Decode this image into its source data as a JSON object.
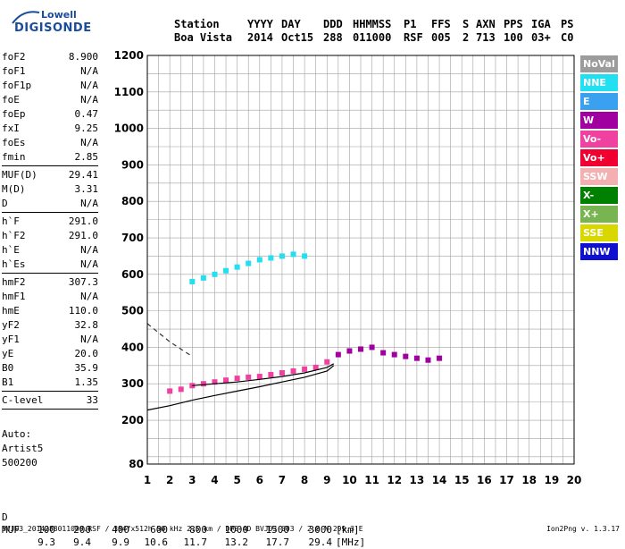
{
  "logo": {
    "line1": "Lowell",
    "line2": "DIGISONDE",
    "brand_color": "#1a4c9c"
  },
  "header": {
    "labels": [
      "Station",
      "YYYY",
      "DAY",
      "DDD",
      "HHMMSS",
      "P1",
      "FFS",
      "S",
      "AXN",
      "PPS",
      "IGA",
      "PS"
    ],
    "values": [
      "Boa Vista",
      "2014",
      "Oct15",
      "288",
      "011000",
      "RSF",
      "005",
      "2",
      "713",
      "100",
      "03+",
      "C0"
    ]
  },
  "params": [
    {
      "group": [
        {
          "key": "foF2",
          "value": "8.900"
        },
        {
          "key": "foF1",
          "value": "N/A"
        },
        {
          "key": "foF1p",
          "value": "N/A"
        },
        {
          "key": "foE",
          "value": "N/A"
        },
        {
          "key": "foEp",
          "value": "0.47"
        },
        {
          "key": "fxI",
          "value": "9.25"
        },
        {
          "key": "foEs",
          "value": "N/A"
        },
        {
          "key": "fmin",
          "value": "2.85"
        }
      ]
    },
    {
      "group": [
        {
          "key": "MUF(D)",
          "value": "29.41"
        },
        {
          "key": "M(D)",
          "value": "3.31"
        },
        {
          "key": "D",
          "value": "N/A"
        }
      ]
    },
    {
      "group": [
        {
          "key": "h`F",
          "value": "291.0"
        },
        {
          "key": "h`F2",
          "value": "291.0"
        },
        {
          "key": "h`E",
          "value": "N/A"
        },
        {
          "key": "h`Es",
          "value": "N/A"
        }
      ]
    },
    {
      "group": [
        {
          "key": "hmF2",
          "value": "307.3"
        },
        {
          "key": "hmF1",
          "value": "N/A"
        },
        {
          "key": "hmE",
          "value": "110.0"
        },
        {
          "key": "yF2",
          "value": "32.8"
        },
        {
          "key": "yF1",
          "value": "N/A"
        },
        {
          "key": "yE",
          "value": "20.0"
        },
        {
          "key": "B0",
          "value": "35.9"
        },
        {
          "key": "B1",
          "value": "1.35"
        }
      ]
    },
    {
      "group": [
        {
          "key": "C-level",
          "value": "33"
        }
      ]
    }
  ],
  "autoscale": [
    "Auto:",
    "Artist5",
    "500200"
  ],
  "legend": [
    {
      "label": "NoVal",
      "color": "#9c9c9c"
    },
    {
      "label": "NNE",
      "color": "#22e0f0"
    },
    {
      "label": "E",
      "color": "#3aa0f0"
    },
    {
      "label": "W",
      "color": "#a000a0"
    },
    {
      "label": "Vo-",
      "color": "#f040a0"
    },
    {
      "label": "Vo+",
      "color": "#f00030"
    },
    {
      "label": "SSW",
      "color": "#f4b0b0"
    },
    {
      "label": "X-",
      "color": "#008000"
    },
    {
      "label": "X+",
      "color": "#78b450"
    },
    {
      "label": "SSE",
      "color": "#d8d800"
    },
    {
      "label": "NNW",
      "color": "#1010d0"
    }
  ],
  "muf_table": {
    "d_label": "D",
    "muf_label": "MUF",
    "d_values": [
      "100",
      "200",
      "400",
      "600",
      "800",
      "1000",
      "1500",
      "3000"
    ],
    "d_unit": "[km]",
    "muf_values": [
      "9.3",
      "9.4",
      "9.9",
      "10.6",
      "11.7",
      "13.2",
      "17.7",
      "29.4"
    ],
    "muf_unit": "[MHz]"
  },
  "footer": {
    "text": "BVJ03_2014288011000.RSF / 384fx512h 50 kHz 2.5 km / DPS-4D BVJ03 003 / 2.8 N 299.3 E",
    "version": "Ion2Png v. 1.3.17"
  },
  "chart_data": {
    "type": "scatter",
    "title": "",
    "xlabel": "",
    "ylabel": "",
    "xlim": [
      1,
      20
    ],
    "ylim": [
      80,
      1200
    ],
    "x_ticks": [
      1,
      2,
      3,
      4,
      5,
      6,
      7,
      8,
      9,
      10,
      11,
      12,
      13,
      14,
      15,
      16,
      17,
      18,
      19,
      20
    ],
    "y_ticks": [
      80,
      200,
      300,
      400,
      500,
      600,
      700,
      800,
      900,
      1000,
      1100,
      1200
    ],
    "grid": true,
    "legend_position": "right",
    "series": [
      {
        "name": "F2-trace",
        "color_key": "Vo-",
        "points": [
          [
            2.0,
            280
          ],
          [
            2.5,
            285
          ],
          [
            3.0,
            295
          ],
          [
            3.5,
            300
          ],
          [
            4.0,
            305
          ],
          [
            4.5,
            310
          ],
          [
            5.0,
            315
          ],
          [
            5.5,
            318
          ],
          [
            6.0,
            320
          ],
          [
            6.5,
            325
          ],
          [
            7.0,
            330
          ],
          [
            7.5,
            335
          ],
          [
            8.0,
            340
          ],
          [
            8.5,
            345
          ],
          [
            9.0,
            360
          ]
        ]
      },
      {
        "name": "F2-echo",
        "color_key": "NNE",
        "points": [
          [
            3.0,
            580
          ],
          [
            3.5,
            590
          ],
          [
            4.0,
            600
          ],
          [
            4.5,
            610
          ],
          [
            5.0,
            620
          ],
          [
            5.5,
            630
          ],
          [
            6.0,
            640
          ],
          [
            6.5,
            645
          ],
          [
            7.0,
            650
          ],
          [
            7.5,
            655
          ],
          [
            8.0,
            650
          ]
        ]
      },
      {
        "name": "F-cluster",
        "color_key": "W",
        "points": [
          [
            9.5,
            380
          ],
          [
            10.0,
            390
          ],
          [
            10.5,
            395
          ],
          [
            11.0,
            400
          ],
          [
            11.5,
            385
          ],
          [
            12.0,
            380
          ],
          [
            12.5,
            375
          ],
          [
            13.0,
            370
          ],
          [
            13.5,
            365
          ],
          [
            14.0,
            370
          ]
        ]
      }
    ],
    "curves": [
      {
        "name": "profile-solid",
        "points": [
          [
            1,
            228
          ],
          [
            2,
            240
          ],
          [
            3,
            255
          ],
          [
            4,
            268
          ],
          [
            5,
            280
          ],
          [
            6,
            292
          ],
          [
            7,
            305
          ],
          [
            8,
            318
          ],
          [
            9,
            335
          ],
          [
            9.3,
            350
          ]
        ]
      },
      {
        "name": "profile-upper",
        "points": [
          [
            3,
            295
          ],
          [
            4,
            300
          ],
          [
            5,
            305
          ],
          [
            6,
            312
          ],
          [
            7,
            320
          ],
          [
            8,
            330
          ],
          [
            9,
            345
          ],
          [
            9.3,
            355
          ]
        ]
      },
      {
        "name": "profile-dashed",
        "points": [
          [
            1,
            465
          ],
          [
            1.5,
            440
          ],
          [
            2,
            415
          ],
          [
            2.5,
            395
          ],
          [
            3,
            375
          ]
        ]
      }
    ]
  }
}
